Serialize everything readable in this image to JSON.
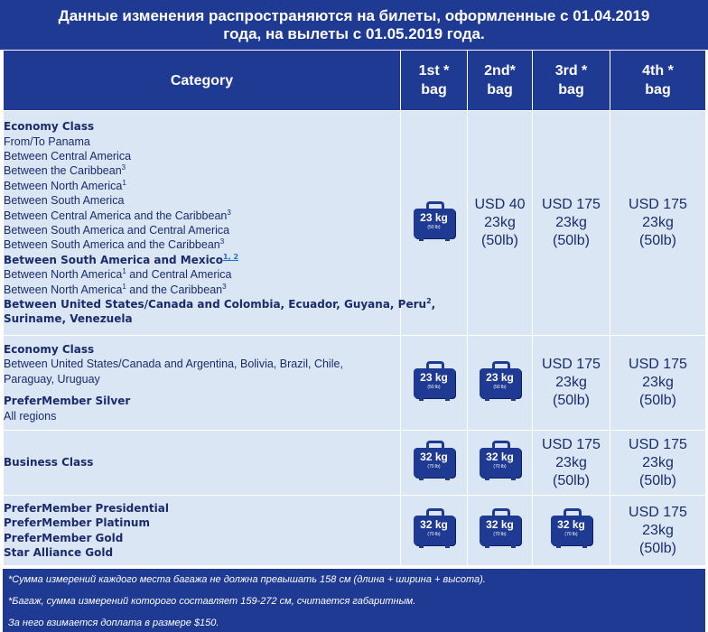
{
  "banner": {
    "line1": "Данные изменения распространяются на билеты, оформленные с 01.04.2019",
    "line2": "года, на вылеты с 01.05.2019 года."
  },
  "header": {
    "category": "Category",
    "bag1": [
      "1st *",
      "bag"
    ],
    "bag2": [
      "2nd*",
      "bag"
    ],
    "bag3": [
      "3rd *",
      "bag"
    ],
    "bag4": [
      "4th *",
      "bag"
    ]
  },
  "rows": [
    {
      "lines": [
        {
          "t": "Economy Class"
        },
        {
          "t": "From/To Panama"
        },
        {
          "t": "Between Central America"
        },
        {
          "t": "Between the Caribbean",
          "sup": "3"
        },
        {
          "t": "Between North America",
          "sup": "1"
        },
        {
          "t": "Between South America"
        },
        {
          "t": "Between Central America and the Caribbean",
          "sup": "3"
        },
        {
          "t": "Between South America and Central America"
        },
        {
          "t": "Between South America and the Caribbean",
          "sup": "3"
        },
        {
          "t": "Between South America and Mexico",
          "sup": "1, 2"
        },
        {
          "t": "Between North America",
          "sup": "1",
          "t2": " and Central America"
        },
        {
          "t": "Between North America",
          "sup": "1",
          "t2": " and the Caribbean",
          "sup2": "3"
        },
        {
          "t": "Between United States/Canada and Colombia, Ecuador, Guyana, Peru",
          "sup": "2",
          "t2": ","
        },
        {
          "t": "Suriname, Venezuela"
        }
      ],
      "bag1": {
        "weight": "23 kg",
        "lb": "(50 lb)"
      },
      "bag2": [
        "USD 40",
        "23kg",
        "(50lb)"
      ],
      "bag3": [
        "USD 175",
        "23kg",
        "(50lb)"
      ],
      "bag4": [
        "USD 175",
        "23kg",
        "(50lb)"
      ]
    },
    {
      "lines": [
        {
          "t": "Economy Class"
        },
        {
          "t": "Between United States/Canada and Argentina, Bolivia, Brazil, Chile,"
        },
        {
          "t": "Paraguay, Uruguay"
        },
        {
          "t": "PreferMember Silver"
        },
        {
          "t": "All regions"
        }
      ],
      "bag1": {
        "weight": "23 kg",
        "lb": "(50 lb)"
      },
      "bag2": {
        "weight": "23 kg",
        "lb": "(50 lb)"
      },
      "bag3": [
        "USD 175",
        "23kg",
        "(50lb)"
      ],
      "bag4": [
        "USD 175",
        "23kg",
        "(50lb)"
      ]
    },
    {
      "lines": [
        {
          "t": "Business Class"
        }
      ],
      "bag1": {
        "weight": "32 kg",
        "lb": "(70 lb)"
      },
      "bag2": {
        "weight": "32 kg",
        "lb": "(70 lb)"
      },
      "bag3": [
        "USD 175",
        "23kg",
        "(50lb)"
      ],
      "bag4": [
        "USD 175",
        "23kg",
        "(50lb)"
      ]
    },
    {
      "lines": [
        {
          "t": "PreferMember Presidential"
        },
        {
          "t": "PreferMember Platinum"
        },
        {
          "t": "PreferMember Gold"
        },
        {
          "t": "Star Alliance Gold"
        }
      ],
      "bag1": {
        "weight": "32 kg",
        "lb": "(70 lb)"
      },
      "bag2": {
        "weight": "32 kg",
        "lb": "(70 lb)"
      },
      "bag3": {
        "weight": "32 kg",
        "lb": "(70 lb)"
      },
      "bag4": [
        "USD 175",
        "23kg",
        "(50lb)"
      ]
    }
  ],
  "footnotes": [
    "*Сумма измерений каждого места багажа не должна превышать 158 см (длина + ширина + высота).",
    "*Багаж, сумма измерений которого составляет 159-272 см, считается габаритным.",
    "За него взимается доплата в размере $150."
  ],
  "colors": {
    "navy": "#1f3a93",
    "row_bg": "#dbe6f4",
    "text": "#1a2b6d"
  }
}
